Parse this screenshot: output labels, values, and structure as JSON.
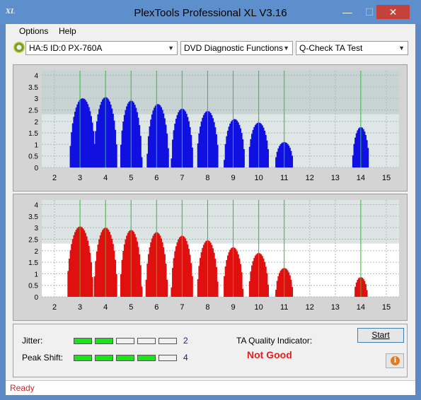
{
  "window": {
    "title": "PlexTools Professional XL V3.16",
    "icon_text": "XL",
    "minimize": "—",
    "maximize": "☐",
    "close": "✕"
  },
  "menu": [
    {
      "label": "Options"
    },
    {
      "label": "Help"
    }
  ],
  "toolbar": {
    "drive": "HA:5 ID:0  PX-760A",
    "function": "DVD Diagnostic Functions",
    "test": "Q-Check TA Test"
  },
  "charts": {
    "x_ticks": [
      "2",
      "3",
      "4",
      "5",
      "6",
      "7",
      "8",
      "9",
      "10",
      "11",
      "12",
      "13",
      "14",
      "15"
    ],
    "y_ticks": [
      "0",
      "0.5",
      "1",
      "1.5",
      "2",
      "2.5",
      "3",
      "3.5",
      "4"
    ],
    "green_lines": [
      3,
      4,
      5,
      6,
      7,
      8,
      9,
      10,
      11,
      14
    ],
    "top_color": "#1010e0",
    "bottom_color": "#e01010",
    "plot_bg_top": "#dfe6e6",
    "plot_bg_bottom": "#ffffff"
  },
  "chart_data": [
    {
      "type": "bar",
      "name": "top",
      "xlim": [
        1.5,
        15.5
      ],
      "ylim": [
        0,
        4.2
      ],
      "peaks": [
        {
          "center": 3.1,
          "height": 3.0,
          "width": 0.5
        },
        {
          "center": 4.0,
          "height": 3.05,
          "width": 0.45
        },
        {
          "center": 5.0,
          "height": 2.9,
          "width": 0.42
        },
        {
          "center": 6.05,
          "height": 2.75,
          "width": 0.42
        },
        {
          "center": 7.0,
          "height": 2.55,
          "width": 0.42
        },
        {
          "center": 8.0,
          "height": 2.45,
          "width": 0.42
        },
        {
          "center": 9.05,
          "height": 2.1,
          "width": 0.4
        },
        {
          "center": 10.0,
          "height": 1.95,
          "width": 0.4
        },
        {
          "center": 11.0,
          "height": 1.1,
          "width": 0.35
        },
        {
          "center": 14.0,
          "height": 1.75,
          "width": 0.32
        }
      ],
      "series_color": "#1010e0"
    },
    {
      "type": "bar",
      "name": "bottom",
      "xlim": [
        1.5,
        15.5
      ],
      "ylim": [
        0,
        4.2
      ],
      "peaks": [
        {
          "center": 3.0,
          "height": 3.05,
          "width": 0.5
        },
        {
          "center": 4.0,
          "height": 3.0,
          "width": 0.45
        },
        {
          "center": 5.0,
          "height": 2.9,
          "width": 0.42
        },
        {
          "center": 6.0,
          "height": 2.8,
          "width": 0.42
        },
        {
          "center": 7.0,
          "height": 2.65,
          "width": 0.42
        },
        {
          "center": 8.0,
          "height": 2.45,
          "width": 0.4
        },
        {
          "center": 9.0,
          "height": 2.15,
          "width": 0.38
        },
        {
          "center": 10.0,
          "height": 1.9,
          "width": 0.38
        },
        {
          "center": 11.0,
          "height": 1.25,
          "width": 0.33
        },
        {
          "center": 14.0,
          "height": 0.85,
          "width": 0.25
        }
      ],
      "series_color": "#e01010"
    }
  ],
  "results": {
    "jitter_label": "Jitter:",
    "jitter_value": "2",
    "jitter_level": 2,
    "peak_label": "Peak Shift:",
    "peak_value": "4",
    "peak_level": 4,
    "segments": 5,
    "ta_label": "TA Quality Indicator:",
    "ta_value": "Not Good",
    "start_label": "Start",
    "info_label": "i"
  },
  "status": {
    "text": "Ready"
  }
}
